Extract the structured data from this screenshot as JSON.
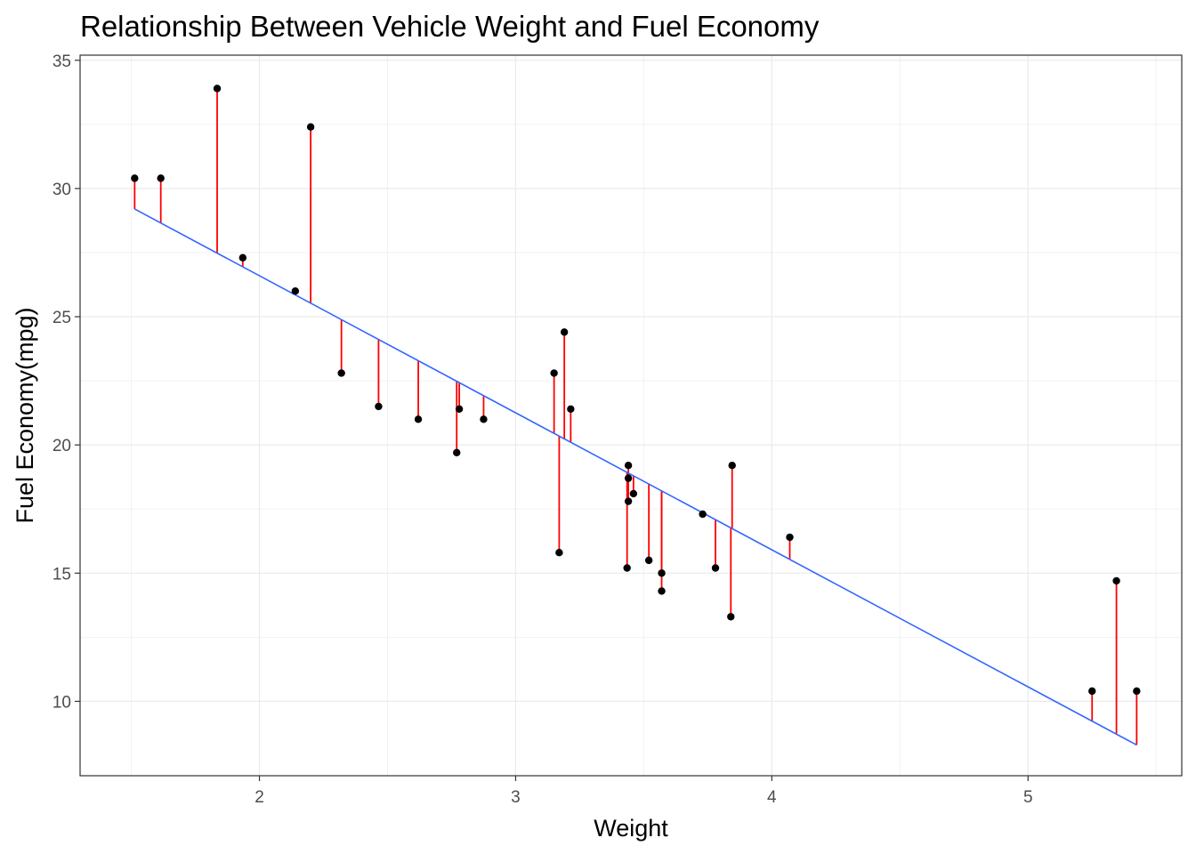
{
  "chart_data": {
    "type": "scatter",
    "title": "Relationship Between Vehicle Weight and Fuel Economy",
    "xlabel": "Weight",
    "ylabel": "Fuel Economy(mpg)",
    "xlim": [
      1.3,
      5.6
    ],
    "ylim": [
      7.1,
      35.2
    ],
    "x_ticks": [
      2,
      3,
      4,
      5
    ],
    "y_ticks": [
      10,
      15,
      20,
      25,
      30,
      35
    ],
    "grid": true,
    "regression_line": {
      "intercept": 37.285,
      "slope": -5.344,
      "color": "#3366FF"
    },
    "residual_color": "#FF0000",
    "point_color": "#000000",
    "points": [
      {
        "x": 2.62,
        "y": 21.0
      },
      {
        "x": 2.875,
        "y": 21.0
      },
      {
        "x": 2.32,
        "y": 22.8
      },
      {
        "x": 3.215,
        "y": 21.4
      },
      {
        "x": 3.44,
        "y": 18.7
      },
      {
        "x": 3.46,
        "y": 18.1
      },
      {
        "x": 3.57,
        "y": 14.3
      },
      {
        "x": 3.19,
        "y": 24.4
      },
      {
        "x": 3.15,
        "y": 22.8
      },
      {
        "x": 3.44,
        "y": 19.2
      },
      {
        "x": 3.44,
        "y": 17.8
      },
      {
        "x": 4.07,
        "y": 16.4
      },
      {
        "x": 3.73,
        "y": 17.3
      },
      {
        "x": 3.78,
        "y": 15.2
      },
      {
        "x": 5.25,
        "y": 10.4
      },
      {
        "x": 5.424,
        "y": 10.4
      },
      {
        "x": 5.345,
        "y": 14.7
      },
      {
        "x": 2.2,
        "y": 32.4
      },
      {
        "x": 1.615,
        "y": 30.4
      },
      {
        "x": 1.835,
        "y": 33.9
      },
      {
        "x": 2.465,
        "y": 21.5
      },
      {
        "x": 3.52,
        "y": 15.5
      },
      {
        "x": 3.435,
        "y": 15.2
      },
      {
        "x": 3.84,
        "y": 13.3
      },
      {
        "x": 3.845,
        "y": 19.2
      },
      {
        "x": 1.935,
        "y": 27.3
      },
      {
        "x": 2.14,
        "y": 26.0
      },
      {
        "x": 1.513,
        "y": 30.4
      },
      {
        "x": 3.17,
        "y": 15.8
      },
      {
        "x": 2.77,
        "y": 19.7
      },
      {
        "x": 3.57,
        "y": 15.0
      },
      {
        "x": 2.78,
        "y": 21.4
      }
    ]
  }
}
